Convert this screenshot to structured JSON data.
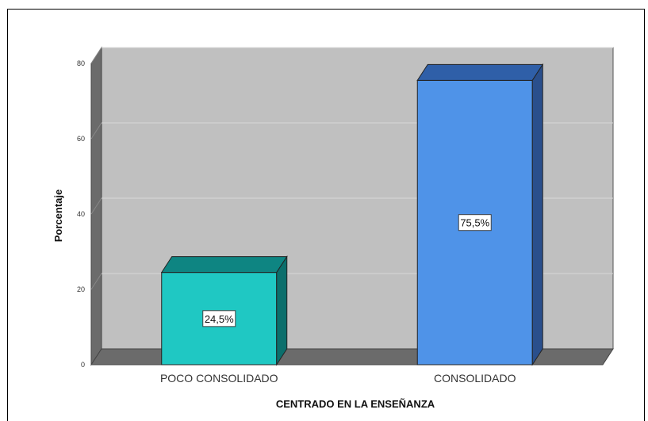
{
  "chart_data": {
    "type": "bar",
    "categories": [
      "POCO CONSOLIDADO",
      "CONSOLIDADO"
    ],
    "values": [
      24.5,
      75.5
    ],
    "data_labels": [
      "24,5%",
      "75,5%"
    ],
    "xlabel": "CENTRADO EN LA ENSEÑANZA",
    "ylabel": "Porcentaje",
    "ylim": [
      0,
      80
    ],
    "yticks": [
      0,
      20,
      40,
      60,
      80
    ],
    "grid": true,
    "three_d": true,
    "colors": {
      "bars": [
        "#1fc8c3",
        "#4f93e8"
      ],
      "bar_tops": [
        "#0e8582",
        "#2f5fa8"
      ],
      "bar_sides": [
        "#0b6f6c",
        "#2a4f8c"
      ],
      "plot_back": "#c0c0c0",
      "plot_wall": "#6b6b6b",
      "gridline": "#d8d8d8"
    }
  }
}
